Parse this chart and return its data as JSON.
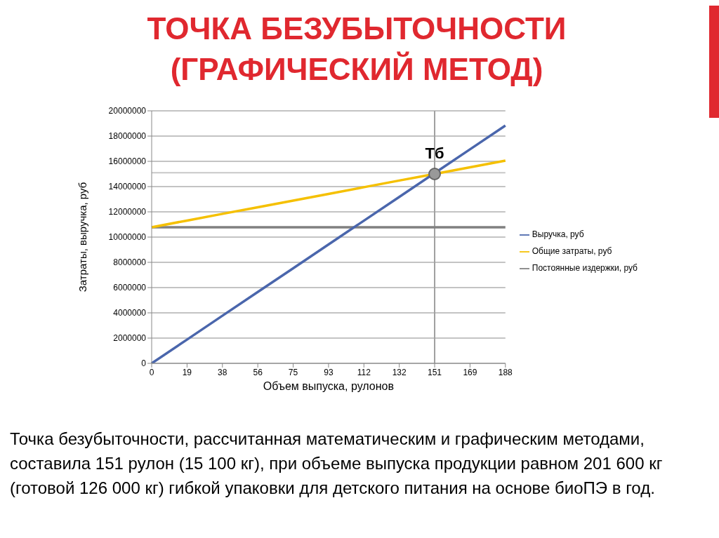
{
  "chart_data": {
    "type": "line",
    "title": "ТОЧКА БЕЗУБЫТОЧНОСТИ (ГРАФИЧЕСКИЙ МЕТОД)",
    "xlabel": "Объем выпуска, рулонов",
    "ylabel": "Затраты, выручка, руб",
    "categories": [
      "0",
      "19",
      "38",
      "56",
      "75",
      "93",
      "112",
      "132",
      "151",
      "169",
      "188"
    ],
    "series": [
      {
        "name": "Постоянные издержки, руб",
        "color": "#808080",
        "values": [
          10780000,
          10780000,
          10780000,
          10780000,
          10780000,
          10780000,
          10780000,
          10780000,
          10780000,
          10780000,
          10780000
        ]
      },
      {
        "name": "Общие затраты, руб",
        "color": "#f5c000",
        "values": [
          10780000,
          11310000,
          11840000,
          12360000,
          12890000,
          13420000,
          13950000,
          14480000,
          15000000,
          15530000,
          16060000
        ]
      },
      {
        "name": "Выручка, руб",
        "color": "#4a66ac",
        "values": [
          0,
          1880000,
          3770000,
          5650000,
          7530000,
          9420000,
          11300000,
          13180000,
          15070000,
          16950000,
          18830000
        ]
      }
    ],
    "ylim": [
      0,
      20000000
    ],
    "yticks": [
      0,
      2000000,
      4000000,
      6000000,
      8000000,
      10000000,
      12000000,
      14000000,
      16000000,
      18000000,
      20000000
    ],
    "grid": "y",
    "legend": "right",
    "marker": "none",
    "line_style": "solid",
    "ref_lines": [
      {
        "axis": "y",
        "value": 15100000,
        "color": "#c8c8c8"
      },
      {
        "axis": "x",
        "value": "151",
        "color": "#a0a0a0"
      }
    ],
    "annotations": [
      {
        "text": "Тб",
        "x": "151",
        "y": 15000000
      },
      "Точка безубыточности, рассчитанная математическим и графическим методами, составила 151 рулон  (15 100 кг), при объеме выпуска продукции равном 201 600 кг (готовой 126 000 кг) гибкой упаковки для детского питания на основе биоПЭ в год."
    ]
  }
}
